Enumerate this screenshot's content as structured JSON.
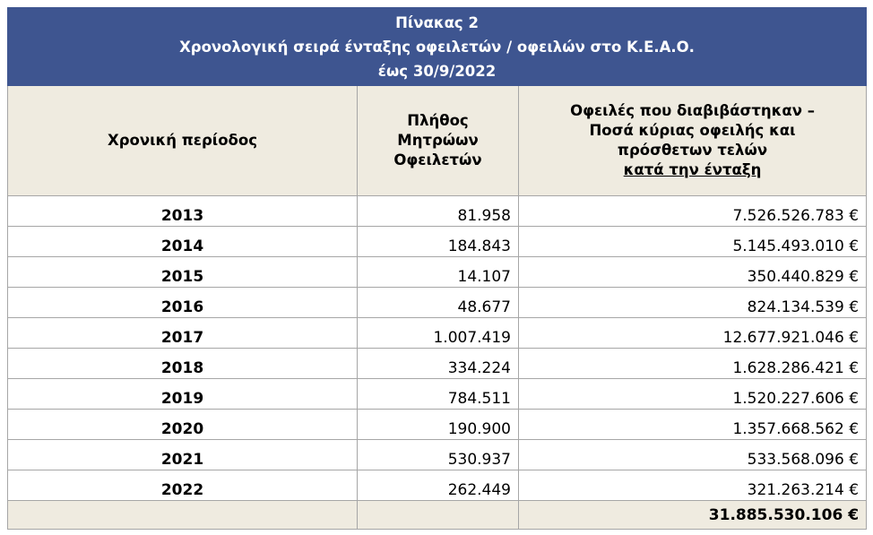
{
  "title": {
    "line1": "Πίνακας 2",
    "line2": "Χρονολογική σειρά ένταξης οφειλετών / οφειλών στο Κ.Ε.Α.Ο.",
    "line3": "έως 30/9/2022"
  },
  "headers": {
    "period": "Χρονική περίοδος",
    "count_line1": "Πλήθος",
    "count_line2": "Μητρώων",
    "count_line3": "Οφειλετών",
    "debt_line1": "Οφειλές που διαβιβάστηκαν –",
    "debt_line2": "Ποσά κύριας οφειλής και",
    "debt_line3": "πρόσθετων τελών",
    "debt_line4": "κατά την ένταξη"
  },
  "rows": [
    {
      "year": "2013",
      "count": "81.958",
      "amount": "7.526.526.783 €"
    },
    {
      "year": "2014",
      "count": "184.843",
      "amount": "5.145.493.010 €"
    },
    {
      "year": "2015",
      "count": "14.107",
      "amount": "350.440.829 €"
    },
    {
      "year": "2016",
      "count": "48.677",
      "amount": "824.134.539 €"
    },
    {
      "year": "2017",
      "count": "1.007.419",
      "amount": "12.677.921.046 €"
    },
    {
      "year": "2018",
      "count": "334.224",
      "amount": "1.628.286.421 €"
    },
    {
      "year": "2019",
      "count": "784.511",
      "amount": "1.520.227.606 €"
    },
    {
      "year": "2020",
      "count": "190.900",
      "amount": "1.357.668.562 €"
    },
    {
      "year": "2021",
      "count": "530.937",
      "amount": "533.568.096 €"
    },
    {
      "year": "2022",
      "count": "262.449",
      "amount": "321.263.214 €"
    }
  ],
  "total": {
    "amount": "31.885.530.106 €"
  },
  "colors": {
    "title_bg": "#3e5590",
    "header_bg": "#efebe0",
    "border": "#a6a6a6"
  }
}
